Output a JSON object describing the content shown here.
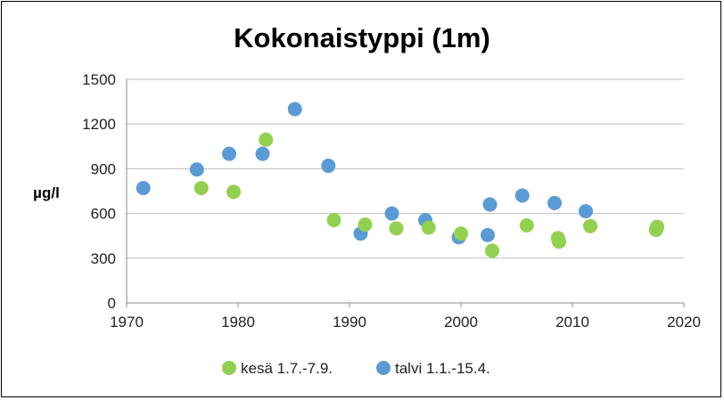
{
  "chart_data": {
    "type": "scatter",
    "title": "Kokonaistyppi (1m)",
    "xlabel": "",
    "ylabel": "µg/l",
    "xlim": [
      1970,
      2020
    ],
    "ylim": [
      0,
      1500
    ],
    "xticks": [
      1970,
      1980,
      1990,
      2000,
      2010,
      2020
    ],
    "yticks": [
      0,
      300,
      600,
      900,
      1200,
      1500
    ],
    "grid": "horizontal",
    "legend_position": "bottom",
    "series": [
      {
        "name": "kesä 1.7.-7.9.",
        "color": "#92D050",
        "points": [
          [
            1976.7,
            770
          ],
          [
            1979.6,
            745
          ],
          [
            1982.5,
            1095
          ],
          [
            1988.6,
            555
          ],
          [
            1991.4,
            525
          ],
          [
            1994.2,
            500
          ],
          [
            1997.1,
            505
          ],
          [
            2000.0,
            465
          ],
          [
            2002.8,
            350
          ],
          [
            2005.9,
            520
          ],
          [
            2008.7,
            435
          ],
          [
            2008.8,
            410
          ],
          [
            2011.6,
            515
          ],
          [
            2017.6,
            510
          ],
          [
            2017.5,
            490
          ]
        ]
      },
      {
        "name": "talvi 1.1.-15.4.",
        "color": "#5B9BD5",
        "points": [
          [
            1971.5,
            770
          ],
          [
            1976.3,
            895
          ],
          [
            1979.2,
            1000
          ],
          [
            1982.2,
            1000
          ],
          [
            1985.1,
            1300
          ],
          [
            1988.1,
            920
          ],
          [
            1991.0,
            465
          ],
          [
            1993.8,
            600
          ],
          [
            1996.8,
            555
          ],
          [
            1999.8,
            440
          ],
          [
            2002.4,
            455
          ],
          [
            2002.6,
            660
          ],
          [
            2005.5,
            720
          ],
          [
            2008.4,
            670
          ],
          [
            2011.2,
            615
          ]
        ]
      }
    ]
  }
}
